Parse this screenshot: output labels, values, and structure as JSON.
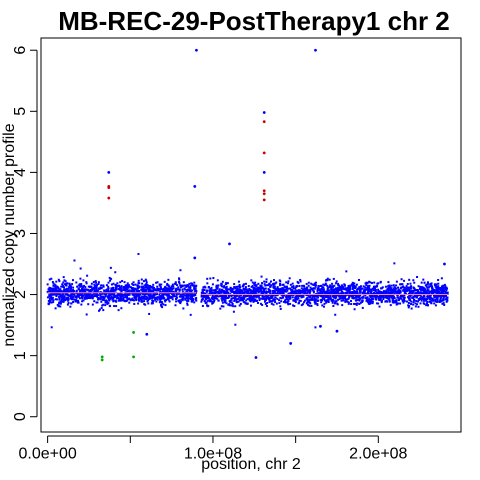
{
  "chart_data": {
    "type": "scatter",
    "title": "MB-REC-29-PostTherapy1 chr 2",
    "xlabel": "position, chr 2",
    "ylabel": "normalized copy number profile",
    "xlim": [
      -4000000,
      250000000
    ],
    "ylim": [
      -0.25,
      6.2
    ],
    "xticks": [
      {
        "value": 0,
        "label": "0.0e+00"
      },
      {
        "value": 50000000,
        "label": null
      },
      {
        "value": 100000000,
        "label": "1.0e+08"
      },
      {
        "value": 150000000,
        "label": null
      },
      {
        "value": 200000000,
        "label": "2.0e+08"
      }
    ],
    "yticks": [
      {
        "value": 0,
        "label": "0"
      },
      {
        "value": 1,
        "label": "1"
      },
      {
        "value": 2,
        "label": "2"
      },
      {
        "value": 3,
        "label": "3"
      },
      {
        "value": 4,
        "label": "4"
      },
      {
        "value": 5,
        "label": "5"
      },
      {
        "value": 6,
        "label": "6"
      }
    ],
    "colors": {
      "normal": "#0000ff",
      "gain": "#cc0000",
      "loss": "#00aa00",
      "segment": "#ff8888"
    },
    "main_band": {
      "baseline": 2.02,
      "ranges_x": [
        [
          0,
          90000000
        ],
        [
          93000000,
          242000000
        ]
      ],
      "spread": 0.13
    },
    "segments": [
      {
        "x": [
          0,
          90000000
        ],
        "y": 2.03
      },
      {
        "x": [
          93000000,
          242000000
        ],
        "y": 2.0
      }
    ],
    "outliers": [
      {
        "x": 37000000,
        "y": 4.0,
        "class": "normal"
      },
      {
        "x": 37000000,
        "y": 3.77,
        "class": "gain"
      },
      {
        "x": 37000000,
        "y": 3.75,
        "class": "gain"
      },
      {
        "x": 37000000,
        "y": 3.58,
        "class": "gain"
      },
      {
        "x": 33000000,
        "y": 0.98,
        "class": "loss"
      },
      {
        "x": 33000000,
        "y": 0.93,
        "class": "loss"
      },
      {
        "x": 52000000,
        "y": 0.98,
        "class": "loss"
      },
      {
        "x": 52000000,
        "y": 1.38,
        "class": "loss"
      },
      {
        "x": 90000000,
        "y": 6.0,
        "class": "normal"
      },
      {
        "x": 89000000,
        "y": 3.77,
        "class": "normal"
      },
      {
        "x": 89000000,
        "y": 2.6,
        "class": "normal"
      },
      {
        "x": 110000000,
        "y": 2.83,
        "class": "normal"
      },
      {
        "x": 131000000,
        "y": 4.98,
        "class": "normal"
      },
      {
        "x": 131000000,
        "y": 4.83,
        "class": "gain"
      },
      {
        "x": 131000000,
        "y": 4.32,
        "class": "gain"
      },
      {
        "x": 131000000,
        "y": 4.0,
        "class": "normal"
      },
      {
        "x": 131000000,
        "y": 3.7,
        "class": "gain"
      },
      {
        "x": 131000000,
        "y": 3.65,
        "class": "gain"
      },
      {
        "x": 131000000,
        "y": 3.55,
        "class": "gain"
      },
      {
        "x": 126000000,
        "y": 0.97,
        "class": "normal"
      },
      {
        "x": 147000000,
        "y": 1.2,
        "class": "normal"
      },
      {
        "x": 162000000,
        "y": 6.0,
        "class": "normal"
      },
      {
        "x": 165000000,
        "y": 1.48,
        "class": "normal"
      },
      {
        "x": 175000000,
        "y": 1.4,
        "class": "normal"
      },
      {
        "x": 60000000,
        "y": 1.35,
        "class": "normal"
      },
      {
        "x": 240000000,
        "y": 2.5,
        "class": "normal"
      }
    ]
  }
}
